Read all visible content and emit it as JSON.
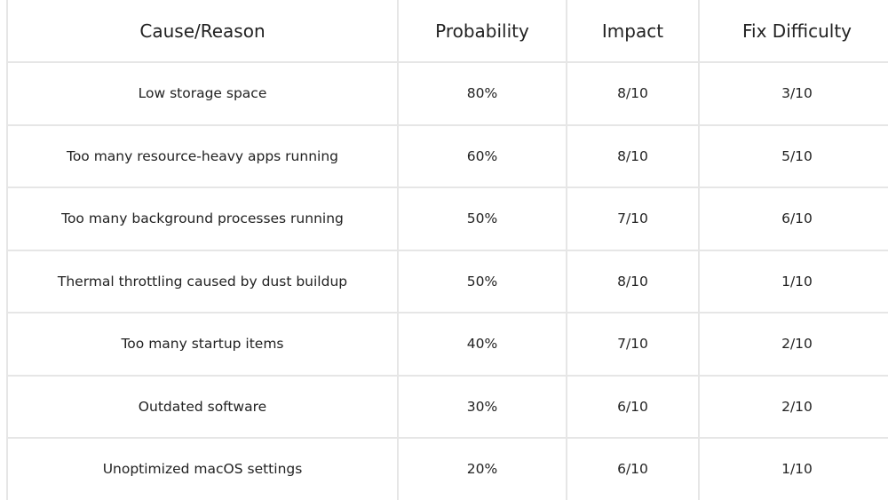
{
  "table": {
    "headers": [
      "Cause/Reason",
      "Probability",
      "Impact",
      "Fix Difficulty"
    ],
    "rows": [
      [
        "Low storage space",
        "80%",
        "8/10",
        "3/10"
      ],
      [
        "Too many resource-heavy apps running",
        "60%",
        "8/10",
        "5/10"
      ],
      [
        "Too many background processes running",
        "50%",
        "7/10",
        "6/10"
      ],
      [
        "Thermal throttling caused by dust buildup",
        "50%",
        "8/10",
        "1/10"
      ],
      [
        "Too many startup items",
        "40%",
        "7/10",
        "2/10"
      ],
      [
        "Outdated software",
        "30%",
        "6/10",
        "2/10"
      ],
      [
        "Unoptimized macOS settings",
        "20%",
        "6/10",
        "1/10"
      ]
    ]
  },
  "colors": {
    "border": "#e6e6e6",
    "text": "#222222",
    "background": "#ffffff"
  }
}
